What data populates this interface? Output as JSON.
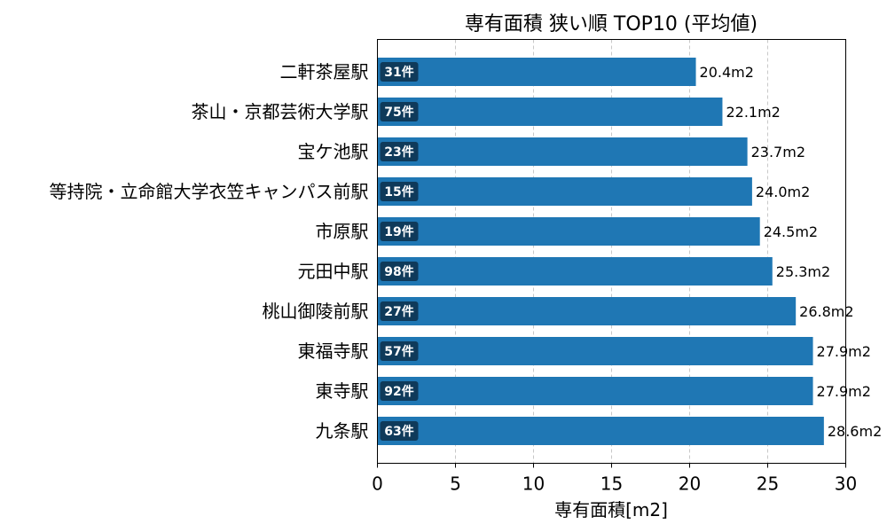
{
  "chart_data": {
    "type": "bar",
    "orientation": "horizontal",
    "title": "専有面積 狭い順 TOP10 (平均値)",
    "xlabel": "専有面積[m2]",
    "ylabel": "",
    "xlim": [
      0,
      30
    ],
    "xticks": [
      0,
      5,
      10,
      15,
      20,
      25,
      30
    ],
    "grid": "vertical-dashed",
    "bar_color": "#1f77b4",
    "count_badge_color": "#0f3a5a",
    "categories": [
      "二軒茶屋駅",
      "茶山・京都芸術大学駅",
      "宝ケ池駅",
      "等持院・立命館大学衣笠キャンパス前駅",
      "市原駅",
      "元田中駅",
      "桃山御陵前駅",
      "東福寺駅",
      "東寺駅",
      "九条駅"
    ],
    "values": [
      20.4,
      22.1,
      23.7,
      24.0,
      24.5,
      25.3,
      26.8,
      27.9,
      27.9,
      28.6
    ],
    "value_labels": [
      "20.4m2",
      "22.1m2",
      "23.7m2",
      "24.0m2",
      "24.5m2",
      "25.3m2",
      "26.8m2",
      "27.9m2",
      "27.9m2",
      "28.6m2"
    ],
    "count_labels": [
      "31件",
      "75件",
      "23件",
      "15件",
      "19件",
      "98件",
      "27件",
      "57件",
      "92件",
      "63件"
    ]
  }
}
